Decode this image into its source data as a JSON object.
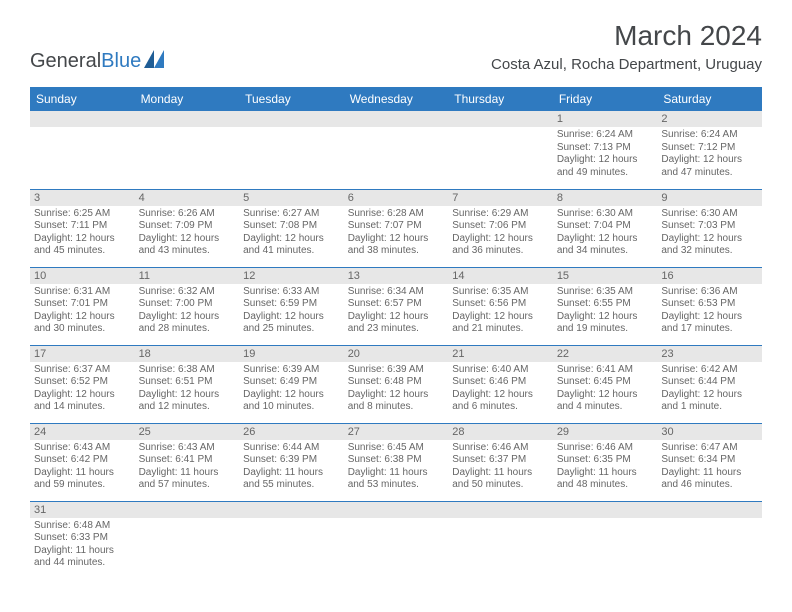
{
  "logo": {
    "part1": "General",
    "part2": "Blue"
  },
  "title": "March 2024",
  "location": "Costa Azul, Rocha Department, Uruguay",
  "colors": {
    "header_bg": "#2f7ac0",
    "header_fg": "#ffffff",
    "daynum_bg": "#e7e7e7",
    "text": "#666666",
    "border": "#2f7ac0",
    "title": "#44474a"
  },
  "weekdays": [
    "Sunday",
    "Monday",
    "Tuesday",
    "Wednesday",
    "Thursday",
    "Friday",
    "Saturday"
  ],
  "weeks": [
    [
      null,
      null,
      null,
      null,
      null,
      {
        "n": "1",
        "sr": "6:24 AM",
        "ss": "7:13 PM",
        "dl": "12 hours and 49 minutes."
      },
      {
        "n": "2",
        "sr": "6:24 AM",
        "ss": "7:12 PM",
        "dl": "12 hours and 47 minutes."
      }
    ],
    [
      {
        "n": "3",
        "sr": "6:25 AM",
        "ss": "7:11 PM",
        "dl": "12 hours and 45 minutes."
      },
      {
        "n": "4",
        "sr": "6:26 AM",
        "ss": "7:09 PM",
        "dl": "12 hours and 43 minutes."
      },
      {
        "n": "5",
        "sr": "6:27 AM",
        "ss": "7:08 PM",
        "dl": "12 hours and 41 minutes."
      },
      {
        "n": "6",
        "sr": "6:28 AM",
        "ss": "7:07 PM",
        "dl": "12 hours and 38 minutes."
      },
      {
        "n": "7",
        "sr": "6:29 AM",
        "ss": "7:06 PM",
        "dl": "12 hours and 36 minutes."
      },
      {
        "n": "8",
        "sr": "6:30 AM",
        "ss": "7:04 PM",
        "dl": "12 hours and 34 minutes."
      },
      {
        "n": "9",
        "sr": "6:30 AM",
        "ss": "7:03 PM",
        "dl": "12 hours and 32 minutes."
      }
    ],
    [
      {
        "n": "10",
        "sr": "6:31 AM",
        "ss": "7:01 PM",
        "dl": "12 hours and 30 minutes."
      },
      {
        "n": "11",
        "sr": "6:32 AM",
        "ss": "7:00 PM",
        "dl": "12 hours and 28 minutes."
      },
      {
        "n": "12",
        "sr": "6:33 AM",
        "ss": "6:59 PM",
        "dl": "12 hours and 25 minutes."
      },
      {
        "n": "13",
        "sr": "6:34 AM",
        "ss": "6:57 PM",
        "dl": "12 hours and 23 minutes."
      },
      {
        "n": "14",
        "sr": "6:35 AM",
        "ss": "6:56 PM",
        "dl": "12 hours and 21 minutes."
      },
      {
        "n": "15",
        "sr": "6:35 AM",
        "ss": "6:55 PM",
        "dl": "12 hours and 19 minutes."
      },
      {
        "n": "16",
        "sr": "6:36 AM",
        "ss": "6:53 PM",
        "dl": "12 hours and 17 minutes."
      }
    ],
    [
      {
        "n": "17",
        "sr": "6:37 AM",
        "ss": "6:52 PM",
        "dl": "12 hours and 14 minutes."
      },
      {
        "n": "18",
        "sr": "6:38 AM",
        "ss": "6:51 PM",
        "dl": "12 hours and 12 minutes."
      },
      {
        "n": "19",
        "sr": "6:39 AM",
        "ss": "6:49 PM",
        "dl": "12 hours and 10 minutes."
      },
      {
        "n": "20",
        "sr": "6:39 AM",
        "ss": "6:48 PM",
        "dl": "12 hours and 8 minutes."
      },
      {
        "n": "21",
        "sr": "6:40 AM",
        "ss": "6:46 PM",
        "dl": "12 hours and 6 minutes."
      },
      {
        "n": "22",
        "sr": "6:41 AM",
        "ss": "6:45 PM",
        "dl": "12 hours and 4 minutes."
      },
      {
        "n": "23",
        "sr": "6:42 AM",
        "ss": "6:44 PM",
        "dl": "12 hours and 1 minute."
      }
    ],
    [
      {
        "n": "24",
        "sr": "6:43 AM",
        "ss": "6:42 PM",
        "dl": "11 hours and 59 minutes."
      },
      {
        "n": "25",
        "sr": "6:43 AM",
        "ss": "6:41 PM",
        "dl": "11 hours and 57 minutes."
      },
      {
        "n": "26",
        "sr": "6:44 AM",
        "ss": "6:39 PM",
        "dl": "11 hours and 55 minutes."
      },
      {
        "n": "27",
        "sr": "6:45 AM",
        "ss": "6:38 PM",
        "dl": "11 hours and 53 minutes."
      },
      {
        "n": "28",
        "sr": "6:46 AM",
        "ss": "6:37 PM",
        "dl": "11 hours and 50 minutes."
      },
      {
        "n": "29",
        "sr": "6:46 AM",
        "ss": "6:35 PM",
        "dl": "11 hours and 48 minutes."
      },
      {
        "n": "30",
        "sr": "6:47 AM",
        "ss": "6:34 PM",
        "dl": "11 hours and 46 minutes."
      }
    ],
    [
      {
        "n": "31",
        "sr": "6:48 AM",
        "ss": "6:33 PM",
        "dl": "11 hours and 44 minutes."
      },
      null,
      null,
      null,
      null,
      null,
      null
    ]
  ],
  "labels": {
    "sunrise": "Sunrise:",
    "sunset": "Sunset:",
    "daylight": "Daylight:"
  }
}
